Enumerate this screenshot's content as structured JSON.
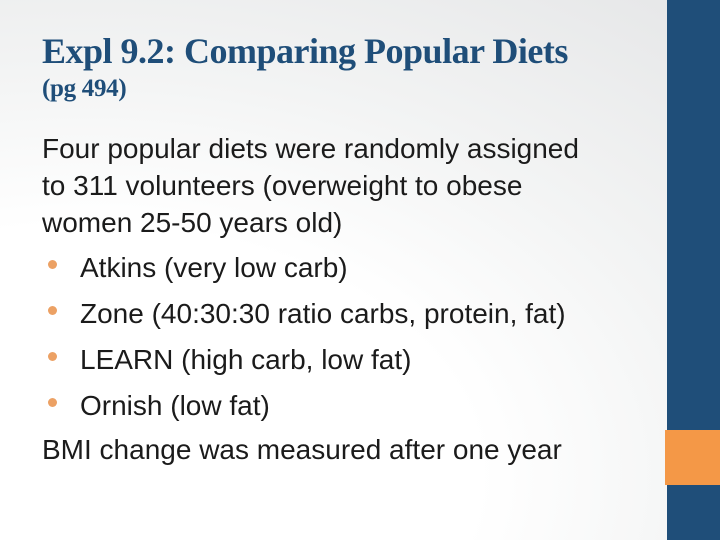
{
  "slide": {
    "title": "Expl 9.2: Comparing Popular Diets",
    "subtitle": "(pg 494)",
    "body": {
      "paragraph_lines": [
        "Four popular diets were randomly assigned",
        "to 311 volunteers (overweight to obese",
        "women 25-50 years old)"
      ],
      "bullets": [
        "Atkins (very low carb)",
        "Zone (40:30:30 ratio carbs, protein, fat)",
        "LEARN (high carb, low fat)",
        "Ornish (low fat)"
      ],
      "footer_line": "BMI change was measured after one year"
    },
    "colors": {
      "title_blue": "#1F4E79",
      "accent_bar_blue": "#1F4E79",
      "accent_orange": "#F49847",
      "bullet_orange": "#ECA164",
      "body_text": "#1B1B1B"
    }
  }
}
